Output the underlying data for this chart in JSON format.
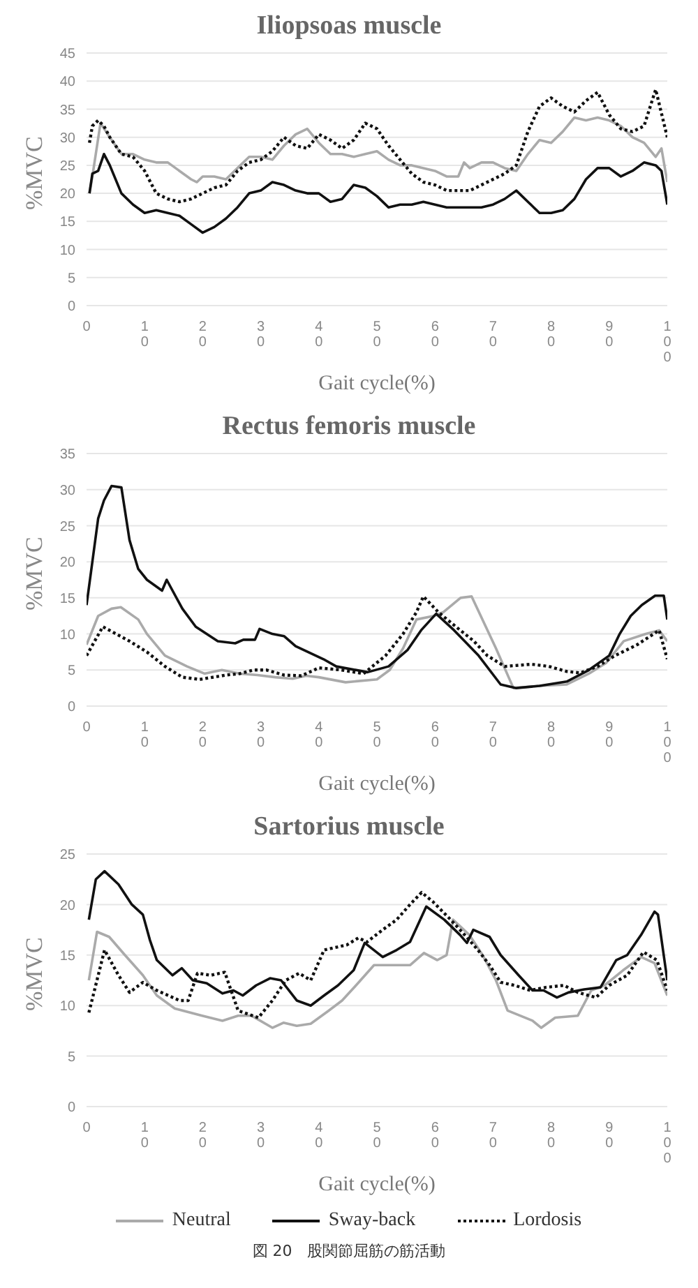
{
  "chart_data": [
    {
      "type": "line",
      "title": "Iliopsoas muscle",
      "xlabel": "Gait cycle(%)",
      "ylabel": "%MVC",
      "xlim": [
        0,
        100
      ],
      "xticks": [
        0,
        10,
        20,
        30,
        40,
        50,
        60,
        70,
        80,
        90,
        100
      ],
      "ylim": [
        0,
        45
      ],
      "yticks": [
        0,
        5,
        10,
        15,
        20,
        25,
        30,
        35,
        40,
        45
      ],
      "grid": "y",
      "legend": false,
      "series": [
        {
          "color": "#aaaaaa",
          "line_style": "solid",
          "x": [
            0.5,
            1,
            2.4,
            4,
            6,
            8,
            10,
            12,
            14,
            16,
            18,
            19,
            20,
            22,
            24,
            26,
            28,
            30,
            32,
            34,
            36,
            38,
            40,
            42,
            44,
            46,
            48,
            50,
            52,
            54,
            56,
            58,
            60,
            62,
            64,
            65,
            66,
            68,
            70,
            72,
            74,
            76,
            78,
            80,
            82,
            84,
            86,
            88,
            90,
            92,
            94,
            96,
            98,
            99,
            100
          ],
          "values": [
            20,
            23,
            32.5,
            30,
            27,
            27,
            26,
            25.5,
            25.5,
            24,
            22.5,
            22,
            23,
            23,
            22.5,
            24.5,
            26.5,
            26.5,
            26,
            28.5,
            30.5,
            31.5,
            29,
            27,
            27,
            26.5,
            27,
            27.5,
            26,
            25,
            25,
            24.5,
            24,
            23,
            23,
            25.5,
            24.5,
            25.5,
            25.5,
            24.5,
            24,
            27,
            29.5,
            29,
            31,
            33.5,
            33,
            33.5,
            33,
            32,
            30,
            29,
            26.5,
            28,
            22
          ]
        },
        {
          "color": "#111111",
          "line_style": "solid",
          "x": [
            0.5,
            1,
            2,
            3,
            4,
            6,
            8,
            10,
            12,
            14,
            16,
            18,
            20,
            22,
            24,
            26,
            28,
            30,
            32,
            34,
            36,
            38,
            40,
            42,
            44,
            46,
            48,
            50,
            52,
            54,
            56,
            58,
            60,
            62,
            64,
            66,
            68,
            70,
            72,
            74,
            76,
            78,
            80,
            82,
            84,
            86,
            88,
            90,
            92,
            94,
            96,
            98,
            99,
            100
          ],
          "values": [
            20,
            23.5,
            24,
            27,
            25,
            20,
            18,
            16.5,
            17,
            16.5,
            16,
            14.5,
            13,
            14,
            15.5,
            17.5,
            20,
            20.5,
            22,
            21.5,
            20.5,
            20,
            20,
            18.5,
            19,
            21.5,
            21,
            19.5,
            17.5,
            18,
            18,
            18.5,
            18,
            17.5,
            17.5,
            17.5,
            17.5,
            18,
            19,
            20.5,
            18.5,
            16.5,
            16.5,
            17,
            19,
            22.5,
            24.5,
            24.5,
            23,
            24,
            25.5,
            25,
            24,
            18
          ]
        },
        {
          "color": "#111111",
          "line_style": "dotted",
          "x": [
            0.5,
            1,
            2,
            3,
            4,
            6,
            8,
            10,
            12,
            14,
            16,
            18,
            20,
            22,
            24,
            26,
            28,
            30,
            32,
            34,
            36,
            38,
            40,
            42,
            44,
            46,
            48,
            50,
            52,
            54,
            56,
            58,
            60,
            62,
            64,
            66,
            68,
            70,
            72,
            74,
            76,
            78,
            80,
            82,
            84,
            86,
            88,
            90,
            92,
            94,
            96,
            98,
            100
          ],
          "values": [
            29,
            32,
            33,
            32,
            30,
            27,
            26.5,
            24,
            20,
            19,
            18.5,
            19,
            20,
            21,
            21.5,
            24,
            25.5,
            26,
            27.5,
            30,
            28.5,
            28,
            30.5,
            29.5,
            28,
            29.5,
            32.5,
            31.5,
            28.5,
            26,
            23.5,
            22,
            21.5,
            20.5,
            20.5,
            20.5,
            21.5,
            22.5,
            23.5,
            25,
            31,
            35.5,
            37,
            35.5,
            34.5,
            36.5,
            38,
            34,
            31.5,
            31,
            32,
            38.5,
            30
          ]
        }
      ]
    },
    {
      "type": "line",
      "title": "Rectus femoris muscle",
      "xlabel": "Gait cycle(%)",
      "ylabel": "%MVC",
      "xlim": [
        0,
        100
      ],
      "xticks": [
        0,
        10,
        20,
        30,
        40,
        50,
        60,
        70,
        80,
        90,
        100
      ],
      "ylim": [
        0,
        35
      ],
      "yticks": [
        0,
        5,
        10,
        15,
        20,
        25,
        30,
        35
      ],
      "grid": "y",
      "legend": false,
      "series": [
        {
          "color": "#aaaaaa",
          "line_style": "solid",
          "x": [
            0,
            2,
            4.3,
            5.9,
            8.9,
            10.4,
            13.5,
            17.3,
            20.3,
            23.3,
            26.4,
            29.4,
            32.5,
            35.5,
            37.8,
            40,
            44.6,
            50,
            52.2,
            54.5,
            56.8,
            59.8,
            61.4,
            64.4,
            66.3,
            70.5,
            73.5,
            78,
            82.7,
            86.5,
            89.5,
            92.5,
            96.3,
            98.6,
            100
          ],
          "values": [
            8.5,
            12.5,
            13.5,
            13.7,
            12,
            10,
            7,
            5.5,
            4.5,
            5,
            4.5,
            4.3,
            4,
            3.8,
            4.2,
            4,
            3.3,
            3.7,
            5,
            8,
            12,
            12.5,
            13,
            15,
            15.2,
            8,
            2.5,
            2.8,
            3,
            4.5,
            6,
            9,
            10,
            10.5,
            9
          ]
        },
        {
          "color": "#111111",
          "line_style": "solid",
          "x": [
            0,
            1,
            2,
            3,
            4.3,
            6,
            7.4,
            8.9,
            10.4,
            13,
            13.8,
            16.5,
            18.8,
            22.6,
            25.6,
            27,
            29,
            29.8,
            32,
            34,
            36,
            40.8,
            43,
            48.4,
            52,
            55.3,
            57.6,
            60.2,
            63.3,
            67.5,
            71.3,
            74,
            78,
            82.7,
            86.5,
            90,
            91.8,
            93.7,
            95.6,
            97.9,
            99.4,
            100
          ],
          "values": [
            14,
            20,
            26,
            28.5,
            30.5,
            30.3,
            23,
            19,
            17.5,
            16,
            17.5,
            13.5,
            11,
            9,
            8.7,
            9.2,
            9.2,
            10.7,
            10,
            9.7,
            8.3,
            6.5,
            5.5,
            4.7,
            5.5,
            7.8,
            10.5,
            12.8,
            10.5,
            7,
            3,
            2.5,
            2.8,
            3.4,
            5,
            7,
            10,
            12.5,
            14,
            15.3,
            15.3,
            12
          ]
        },
        {
          "color": "#111111",
          "line_style": "dotted",
          "x": [
            0,
            2.8,
            7.4,
            10.4,
            13.5,
            16.5,
            19.5,
            24,
            26.4,
            28.7,
            31,
            34,
            37,
            40,
            43.9,
            47.7,
            51.5,
            54.5,
            56.8,
            58,
            60.6,
            63.6,
            66.7,
            69,
            72,
            76.6,
            79.6,
            82.7,
            85,
            88,
            91,
            94.8,
            98.6,
            100
          ],
          "values": [
            7,
            11,
            9,
            7.5,
            5.5,
            4,
            3.7,
            4.3,
            4.5,
            5,
            5,
            4.3,
            4.2,
            5.3,
            5,
            4.5,
            7,
            10,
            13,
            15.2,
            13,
            11,
            9,
            7,
            5.5,
            5.8,
            5.5,
            4.8,
            4.6,
            5.5,
            7,
            8.5,
            10.5,
            6.5
          ]
        }
      ]
    },
    {
      "type": "line",
      "title": "Sartorius muscle",
      "xlabel": "Gait cycle(%)",
      "ylabel": "%MVC",
      "xlim": [
        0,
        100
      ],
      "xticks": [
        0,
        10,
        20,
        30,
        40,
        50,
        60,
        70,
        80,
        90,
        100
      ],
      "ylim": [
        0,
        25
      ],
      "yticks": [
        0,
        5,
        10,
        15,
        20,
        25
      ],
      "grid": "y",
      "legend": "bottom",
      "annotations": [
        "図 20　股関節屈筋の筋活動"
      ],
      "series": [
        {
          "name": "Neutral",
          "color": "#aaaaaa",
          "line_style": "solid",
          "x": [
            0.4,
            1.8,
            3.9,
            6.6,
            9.7,
            12.1,
            15.2,
            19.9,
            23.4,
            26.1,
            28.4,
            32,
            33.9,
            36.2,
            38.6,
            41.7,
            44,
            46.4,
            49.5,
            52.6,
            55.7,
            58.1,
            60.4,
            62,
            63.1,
            65.9,
            68.2,
            70.5,
            72.5,
            76.8,
            78.3,
            80.7,
            84.6,
            86.9,
            89.2,
            92.4,
            95.5,
            97.8,
            100
          ],
          "values": [
            12.5,
            17.3,
            16.8,
            15,
            13,
            11,
            9.7,
            9,
            8.5,
            9,
            9,
            7.8,
            8.3,
            8,
            8.2,
            9.5,
            10.5,
            12,
            14,
            14,
            14,
            15.2,
            14.5,
            15,
            18.5,
            17,
            15,
            12.5,
            9.5,
            8.5,
            7.8,
            8.8,
            9,
            11.5,
            12,
            13.5,
            14.8,
            14.2,
            11
          ]
        },
        {
          "name": "Sway-back",
          "color": "#111111",
          "line_style": "solid",
          "x": [
            0.4,
            1.6,
            3.1,
            5.5,
            7.8,
            9.7,
            10.9,
            12.1,
            14.8,
            16.4,
            18.3,
            20.7,
            23.4,
            25.3,
            26.9,
            29.2,
            31.6,
            33.5,
            36.2,
            38.6,
            40.9,
            43.3,
            46,
            47.9,
            51,
            53.4,
            55.7,
            58.5,
            61.6,
            64.3,
            65.5,
            66.6,
            69.4,
            71.3,
            74.4,
            76.8,
            78.7,
            81,
            83,
            85.7,
            88.5,
            91.2,
            93.1,
            95.5,
            97.8,
            98.4,
            100
          ],
          "values": [
            18.5,
            22.5,
            23.3,
            22,
            20,
            19,
            16.5,
            14.5,
            13,
            13.7,
            12.5,
            12.2,
            11.2,
            11.5,
            11,
            12,
            12.7,
            12.5,
            10.5,
            10,
            11,
            12,
            13.5,
            16.2,
            14.8,
            15.5,
            16.3,
            19.8,
            18.5,
            17,
            16.2,
            17.5,
            16.8,
            15,
            13,
            11.5,
            11.5,
            10.8,
            11.3,
            11.6,
            11.8,
            14.5,
            15,
            17,
            19.3,
            19,
            12.5
          ]
        },
        {
          "name": "Lordosis",
          "color": "#111111",
          "line_style": "dotted",
          "x": [
            0.4,
            3.1,
            5.5,
            7.4,
            9.7,
            12.1,
            16,
            17.5,
            19.1,
            21.4,
            23.8,
            26.1,
            29.6,
            32,
            34.3,
            36.6,
            38.6,
            40.9,
            44.8,
            46.8,
            48.3,
            51,
            53.4,
            55.7,
            57.7,
            59.6,
            62.7,
            65.1,
            67.4,
            69.4,
            71.3,
            73.7,
            76.4,
            79.1,
            82.2,
            84.6,
            87.7,
            90,
            93.1,
            95.9,
            98.2,
            100
          ],
          "values": [
            9.3,
            15.5,
            13,
            11.3,
            12.3,
            11.5,
            10.5,
            10.5,
            13.2,
            13,
            13.3,
            9.5,
            8.8,
            10.5,
            12.5,
            13.2,
            12.5,
            15.5,
            16,
            16.7,
            16.3,
            17.5,
            18.5,
            20,
            21.2,
            20.3,
            18.5,
            17,
            15.5,
            14,
            12.3,
            12,
            11.5,
            11.8,
            12,
            11.3,
            10.8,
            12,
            13,
            15.3,
            14.5,
            11.5
          ]
        }
      ]
    }
  ]
}
